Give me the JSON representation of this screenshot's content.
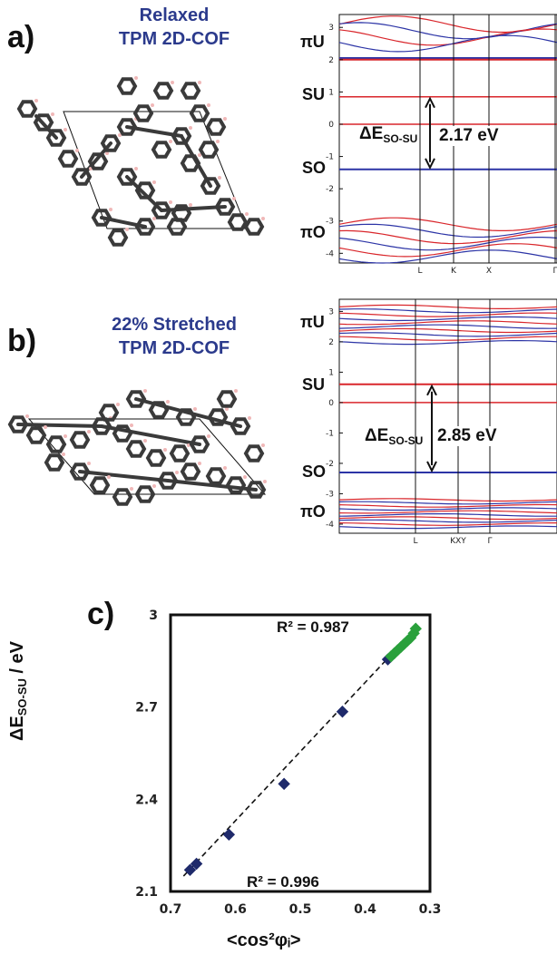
{
  "panel_a": {
    "letter": "a)",
    "title_line1": "Relaxed",
    "title_line2": "TPM 2D-COF",
    "band_labels": [
      "πU",
      "SU",
      "SO",
      "πO"
    ],
    "gap_symbol": "ΔE",
    "gap_subscript": "SO-SU",
    "gap_value": "2.17 eV",
    "y_ticks": [
      "3",
      "2",
      "1",
      "0",
      "-1",
      "-2",
      "-3",
      "-4"
    ],
    "k_labels": [
      "L",
      "K",
      "X",
      "Γ"
    ]
  },
  "panel_b": {
    "letter": "b)",
    "title_line1": "22% Stretched",
    "title_line2": "TPM 2D-COF",
    "band_labels": [
      "πU",
      "SU",
      "SO",
      "πO"
    ],
    "gap_symbol": "ΔE",
    "gap_subscript": "SO-SU",
    "gap_value": "2.85 eV",
    "y_ticks": [
      "3",
      "2",
      "1",
      "0",
      "-1",
      "-2",
      "-3",
      "-4"
    ],
    "k_labels": [
      "L",
      "KXY",
      "Γ"
    ]
  },
  "panel_c": {
    "letter": "c)"
  },
  "colors": {
    "title_blue": "#2b3a8c",
    "band_red": "#d9262b",
    "band_blue": "#2c34a6",
    "point_navy": "#1f2a6b",
    "point_green": "#2aa03c"
  },
  "chart_data": {
    "type": "scatter",
    "title": "",
    "xlabel": "<cos²φᵢ>",
    "ylabel": "ΔE SO-SU / eV",
    "xlim": [
      0.7,
      0.3
    ],
    "ylim": [
      2.1,
      3.0
    ],
    "x_reversed": true,
    "x_ticks": [
      "0.7",
      "0.6",
      "0.5",
      "0.4",
      "0.3"
    ],
    "y_ticks": [
      "2.1",
      "2.4",
      "2.7",
      "3"
    ],
    "grid": false,
    "series": [
      {
        "color": "#1f2a6b",
        "x": [
          0.67,
          0.66,
          0.61,
          0.525,
          0.435,
          0.365
        ],
        "y": [
          2.17,
          2.19,
          2.285,
          2.45,
          2.685,
          2.855
        ]
      },
      {
        "color": "#2aa03c",
        "x": [
          0.36,
          0.355,
          0.35,
          0.345,
          0.34,
          0.335,
          0.33,
          0.325,
          0.322
        ],
        "y": [
          2.865,
          2.875,
          2.885,
          2.895,
          2.905,
          2.915,
          2.925,
          2.94,
          2.955
        ]
      }
    ],
    "annotations": [
      "R² = 0.987",
      "R² = 0.996"
    ]
  }
}
